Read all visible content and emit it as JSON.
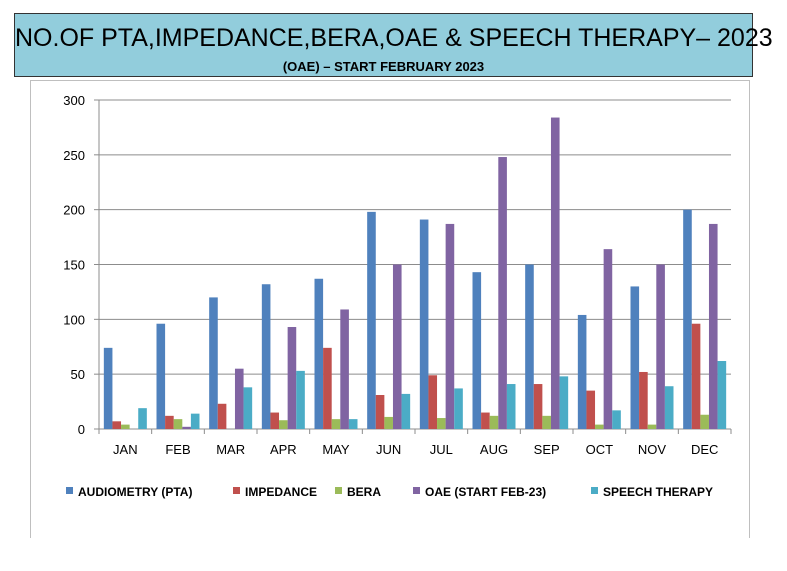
{
  "header": {
    "title": "NO.OF PTA,IMPEDANCE,BERA,OAE & SPEECH THERAPY– 2023",
    "subtitle": "(OAE) – START FEBRUARY 2023"
  },
  "chart_data": {
    "type": "bar",
    "categories": [
      "JAN",
      "FEB",
      "MAR",
      "APR",
      "MAY",
      "JUN",
      "JUL",
      "AUG",
      "SEP",
      "OCT",
      "NOV",
      "DEC"
    ],
    "ylim": [
      0,
      300
    ],
    "yticks": [
      0,
      50,
      100,
      150,
      200,
      250,
      300
    ],
    "grid": true,
    "legend_position": "bottom",
    "series": [
      {
        "name": "AUDIOMETRY (PTA)",
        "color": "#4F81BD",
        "values": [
          74,
          96,
          120,
          132,
          137,
          198,
          191,
          143,
          150,
          104,
          130,
          200
        ]
      },
      {
        "name": "IMPEDANCE",
        "color": "#C0504D",
        "values": [
          7,
          12,
          23,
          15,
          74,
          31,
          49,
          15,
          41,
          35,
          52,
          96
        ]
      },
      {
        "name": "BERA",
        "color": "#9BBB59",
        "values": [
          4,
          9,
          0,
          8,
          9,
          11,
          10,
          12,
          12,
          4,
          4,
          13
        ]
      },
      {
        "name": "OAE (START FEB-23)",
        "color": "#8064A2",
        "values": [
          0,
          2,
          55,
          93,
          109,
          150,
          187,
          248,
          284,
          164,
          150,
          187
        ]
      },
      {
        "name": "SPEECH  THERAPY",
        "color": "#4BACC6",
        "values": [
          19,
          14,
          38,
          53,
          9,
          32,
          37,
          41,
          48,
          17,
          39,
          62
        ]
      }
    ]
  }
}
